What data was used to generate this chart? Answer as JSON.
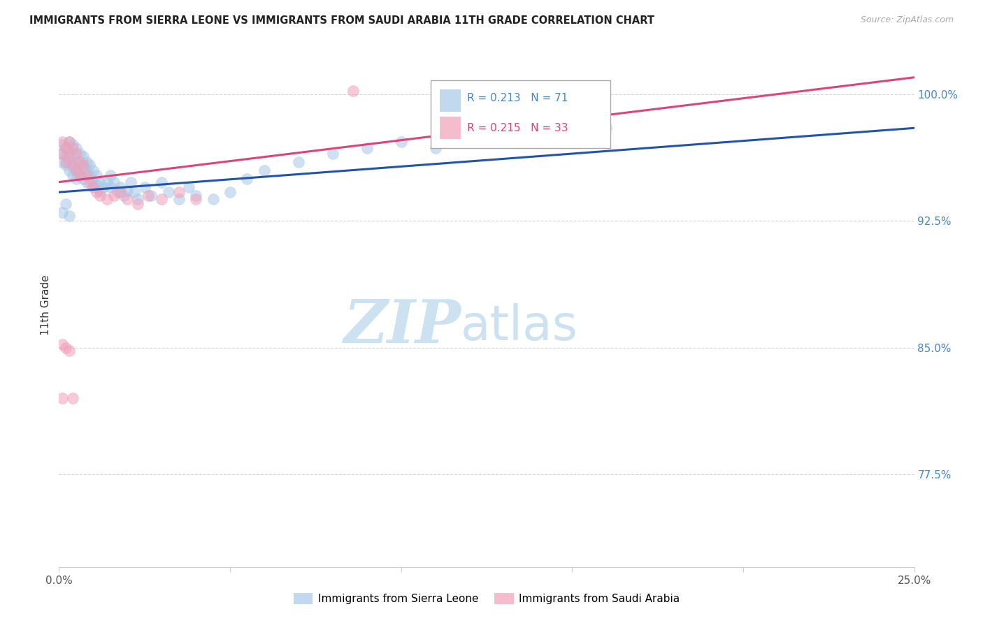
{
  "title": "IMMIGRANTS FROM SIERRA LEONE VS IMMIGRANTS FROM SAUDI ARABIA 11TH GRADE CORRELATION CHART",
  "source": "Source: ZipAtlas.com",
  "ylabel": "11th Grade",
  "xlim": [
    0.0,
    0.25
  ],
  "ylim": [
    0.72,
    1.03
  ],
  "xtick_positions": [
    0.0,
    0.05,
    0.1,
    0.15,
    0.2,
    0.25
  ],
  "xticklabels": [
    "0.0%",
    "",
    "",
    "",
    "",
    "25.0%"
  ],
  "ytick_positions": [
    0.775,
    0.85,
    0.925,
    1.0
  ],
  "ytick_labels": [
    "77.5%",
    "85.0%",
    "92.5%",
    "100.0%"
  ],
  "sierra_leone_color": "#a8c8e8",
  "saudi_arabia_color": "#f0a0b8",
  "sierra_leone_line_color": "#2255aa",
  "saudi_arabia_line_color": "#dd4477",
  "r_blue": 0.213,
  "n_blue": 71,
  "r_pink": 0.215,
  "n_pink": 33,
  "watermark_zip": "ZIP",
  "watermark_atlas": "atlas",
  "watermark_color_zip": "#c8dff0",
  "watermark_color_atlas": "#c8dff0",
  "background_color": "#ffffff",
  "grid_color": "#cccccc",
  "sl_x": [
    0.001,
    0.001,
    0.001,
    0.002,
    0.002,
    0.002,
    0.003,
    0.003,
    0.003,
    0.003,
    0.004,
    0.004,
    0.004,
    0.004,
    0.005,
    0.005,
    0.005,
    0.005,
    0.006,
    0.006,
    0.006,
    0.007,
    0.007,
    0.007,
    0.008,
    0.008,
    0.008,
    0.009,
    0.009,
    0.01,
    0.01,
    0.011,
    0.011,
    0.012,
    0.012,
    0.013,
    0.014,
    0.015,
    0.015,
    0.016,
    0.017,
    0.018,
    0.019,
    0.02,
    0.021,
    0.022,
    0.023,
    0.025,
    0.027,
    0.03,
    0.032,
    0.035,
    0.038,
    0.04,
    0.045,
    0.05,
    0.055,
    0.06,
    0.07,
    0.08,
    0.09,
    0.1,
    0.11,
    0.12,
    0.13,
    0.14,
    0.15,
    0.16,
    0.001,
    0.002,
    0.003
  ],
  "sl_y": [
    0.97,
    0.965,
    0.96,
    0.968,
    0.963,
    0.958,
    0.972,
    0.966,
    0.96,
    0.955,
    0.97,
    0.963,
    0.957,
    0.952,
    0.968,
    0.96,
    0.955,
    0.95,
    0.965,
    0.958,
    0.952,
    0.963,
    0.957,
    0.95,
    0.96,
    0.955,
    0.948,
    0.958,
    0.952,
    0.955,
    0.948,
    0.952,
    0.946,
    0.948,
    0.943,
    0.945,
    0.948,
    0.952,
    0.945,
    0.948,
    0.942,
    0.945,
    0.94,
    0.943,
    0.948,
    0.942,
    0.938,
    0.945,
    0.94,
    0.948,
    0.942,
    0.938,
    0.945,
    0.94,
    0.938,
    0.942,
    0.95,
    0.955,
    0.96,
    0.965,
    0.968,
    0.972,
    0.968,
    0.972,
    0.975,
    0.978,
    0.975,
    0.98,
    0.93,
    0.935,
    0.928
  ],
  "sa_x": [
    0.001,
    0.001,
    0.002,
    0.002,
    0.003,
    0.003,
    0.004,
    0.004,
    0.005,
    0.005,
    0.006,
    0.006,
    0.007,
    0.008,
    0.009,
    0.01,
    0.011,
    0.012,
    0.014,
    0.016,
    0.018,
    0.02,
    0.023,
    0.026,
    0.03,
    0.035,
    0.04,
    0.001,
    0.002,
    0.003,
    0.004,
    0.086,
    0.001
  ],
  "sa_y": [
    0.972,
    0.965,
    0.968,
    0.96,
    0.972,
    0.963,
    0.968,
    0.958,
    0.965,
    0.955,
    0.96,
    0.952,
    0.958,
    0.952,
    0.948,
    0.945,
    0.942,
    0.94,
    0.938,
    0.94,
    0.942,
    0.938,
    0.935,
    0.94,
    0.938,
    0.942,
    0.938,
    0.852,
    0.85,
    0.848,
    0.82,
    1.002,
    0.82
  ],
  "sl_trend_x": [
    0.0,
    0.25
  ],
  "sl_trend_y": [
    0.942,
    0.98
  ],
  "sa_trend_x": [
    0.0,
    0.25
  ],
  "sa_trend_y": [
    0.948,
    1.01
  ]
}
